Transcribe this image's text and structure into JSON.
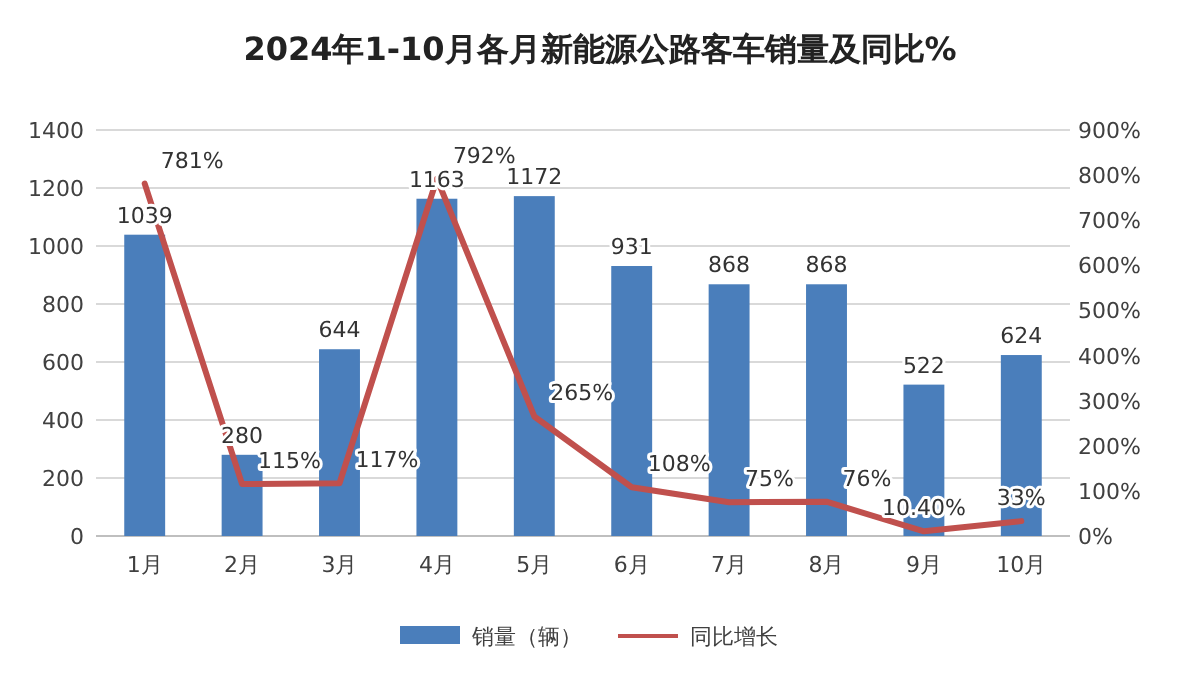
{
  "chart_data": {
    "type": "bar",
    "title": "2024年1-10月各月新能源公路客车销量及同比%",
    "categories": [
      "1月",
      "2月",
      "3月",
      "4月",
      "5月",
      "6月",
      "7月",
      "8月",
      "9月",
      "10月"
    ],
    "series": [
      {
        "name": "销量（辆）",
        "color": "#4a7ebb",
        "values": [
          1039,
          280,
          644,
          1163,
          1172,
          931,
          868,
          868,
          522,
          624
        ],
        "value_labels": [
          "1039",
          "280",
          "644",
          "1163",
          "1172",
          "931",
          "868",
          "868",
          "522",
          "624"
        ]
      },
      {
        "name": "同比增长",
        "type": "line",
        "axis": "y2",
        "color": "#c0504d",
        "values": [
          781,
          115,
          117,
          792,
          265,
          108,
          75,
          76,
          10.4,
          33
        ],
        "value_labels": [
          "781%",
          "115%",
          "117%",
          "792%",
          "265%",
          "108%",
          "75%",
          "76%",
          "10.40%",
          "33%"
        ]
      }
    ],
    "ylim": [
      0,
      1400
    ],
    "yticks": [
      0,
      200,
      400,
      600,
      800,
      1000,
      1200,
      1400
    ],
    "y2lim": [
      0,
      900
    ],
    "y2ticks": [
      {
        "value": 0,
        "label": "0%"
      },
      {
        "value": 100,
        "label": "100%"
      },
      {
        "value": 200,
        "label": "200%"
      },
      {
        "value": 300,
        "label": "300%"
      },
      {
        "value": 400,
        "label": "400%"
      },
      {
        "value": 500,
        "label": "500%"
      },
      {
        "value": 600,
        "label": "600%"
      },
      {
        "value": 700,
        "label": "700%"
      },
      {
        "value": 800,
        "label": "800%"
      },
      {
        "value": 900,
        "label": "900%"
      }
    ],
    "grid": "y",
    "legend": "bottom"
  }
}
